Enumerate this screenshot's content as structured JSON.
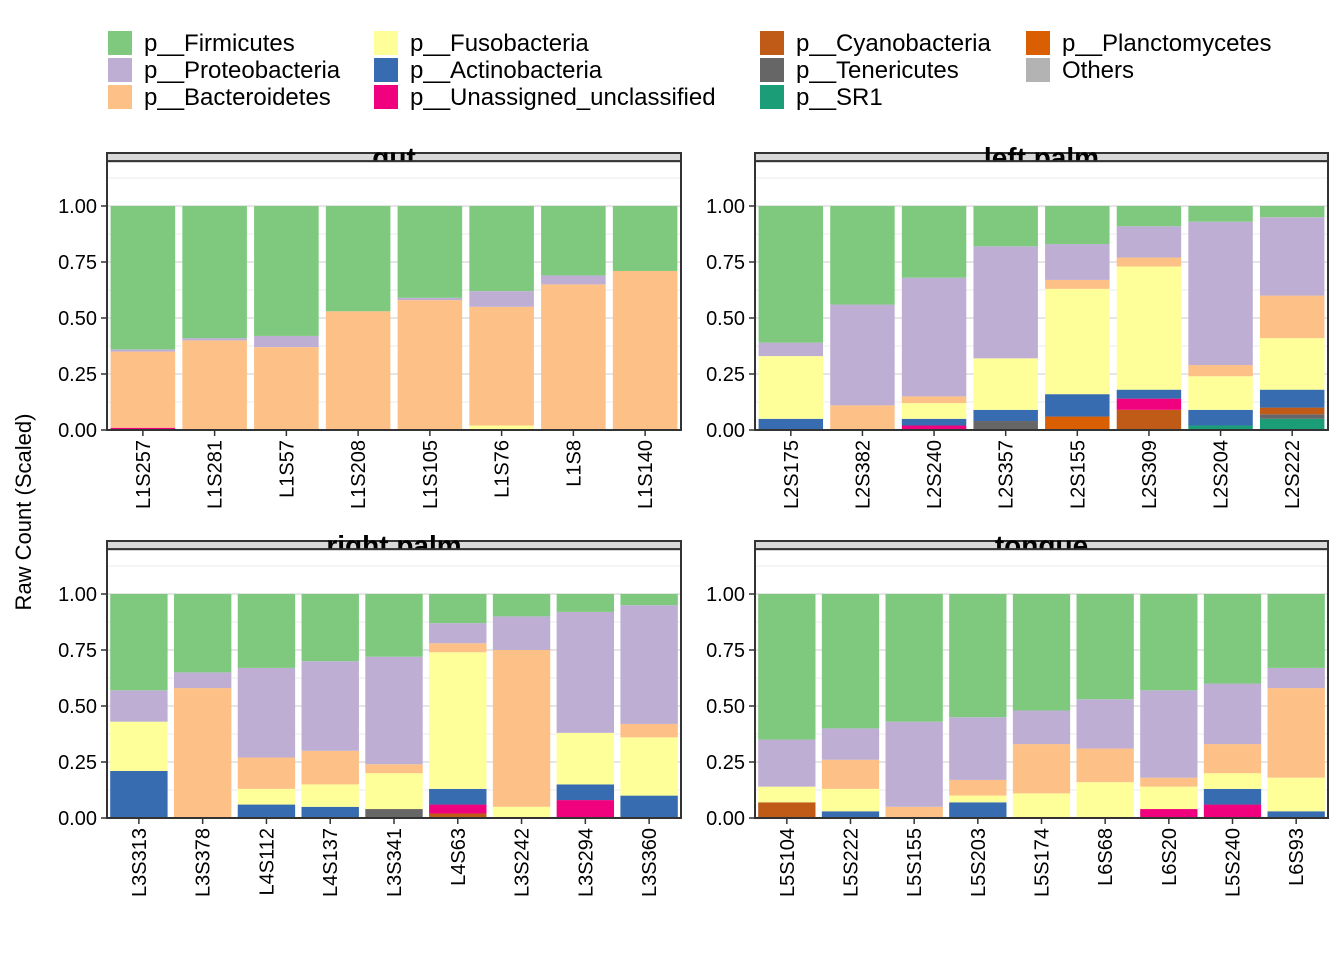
{
  "chart_data": {
    "type": "bar",
    "stacked": true,
    "ylabel": "Raw Count (Scaled)",
    "xlabel": "",
    "ylim": [
      0,
      1.2
    ],
    "yticks": [
      "0.00",
      "0.25",
      "0.50",
      "0.75",
      "1.00"
    ],
    "grid": true,
    "legend_position": "top",
    "series": [
      {
        "name": "p__Firmicutes",
        "color": "#7FC97F"
      },
      {
        "name": "p__Proteobacteria",
        "color": "#BEAED4"
      },
      {
        "name": "p__Bacteroidetes",
        "color": "#FDC086"
      },
      {
        "name": "p__Fusobacteria",
        "color": "#FFFF99"
      },
      {
        "name": "p__Actinobacteria",
        "color": "#386CB0"
      },
      {
        "name": "p__Unassigned_unclassified",
        "color": "#F0027F"
      },
      {
        "name": "p__Cyanobacteria",
        "color": "#BF5B17"
      },
      {
        "name": "p__Tenericutes",
        "color": "#666666"
      },
      {
        "name": "p__SR1",
        "color": "#1B9E77"
      },
      {
        "name": "p__Planctomycetes",
        "color": "#D95F02"
      },
      {
        "name": "Others",
        "color": "#B3B3B3"
      }
    ],
    "stack_order_bottom_to_top": [
      "Others",
      "p__Planctomycetes",
      "p__SR1",
      "p__Tenericutes",
      "p__Cyanobacteria",
      "p__Unassigned_unclassified",
      "p__Actinobacteria",
      "p__Fusobacteria",
      "p__Bacteroidetes",
      "p__Proteobacteria",
      "p__Firmicutes"
    ],
    "panels": [
      {
        "title": "gut",
        "samples": [
          "L1S257",
          "L1S281",
          "L1S57",
          "L1S208",
          "L1S105",
          "L1S76",
          "L1S8",
          "L1S140"
        ],
        "values": {
          "Others": [
            0,
            0,
            0,
            0,
            0,
            0,
            0,
            0
          ],
          "p__Planctomycetes": [
            0,
            0,
            0,
            0,
            0,
            0,
            0,
            0
          ],
          "p__SR1": [
            0,
            0,
            0,
            0,
            0,
            0,
            0,
            0
          ],
          "p__Tenericutes": [
            0,
            0,
            0,
            0,
            0,
            0,
            0,
            0
          ],
          "p__Cyanobacteria": [
            0,
            0,
            0,
            0,
            0,
            0,
            0,
            0
          ],
          "p__Unassigned_unclassified": [
            0.01,
            0,
            0,
            0,
            0,
            0,
            0,
            0
          ],
          "p__Actinobacteria": [
            0,
            0,
            0,
            0,
            0,
            0,
            0,
            0
          ],
          "p__Fusobacteria": [
            0,
            0,
            0,
            0,
            0,
            0.02,
            0,
            0
          ],
          "p__Bacteroidetes": [
            0.34,
            0.4,
            0.37,
            0.53,
            0.58,
            0.53,
            0.65,
            0.71
          ],
          "p__Proteobacteria": [
            0.01,
            0.01,
            0.05,
            0,
            0.01,
            0.07,
            0.04,
            0
          ],
          "p__Firmicutes": [
            0.64,
            0.59,
            0.58,
            0.47,
            0.41,
            0.38,
            0.31,
            0.29
          ]
        }
      },
      {
        "title": "left palm",
        "samples": [
          "L2S175",
          "L2S382",
          "L2S240",
          "L2S357",
          "L2S155",
          "L2S309",
          "L2S204",
          "L2S222"
        ],
        "values": {
          "Others": [
            0,
            0,
            0,
            0,
            0,
            0,
            0,
            0
          ],
          "p__Planctomycetes": [
            0,
            0,
            0,
            0,
            0.06,
            0,
            0,
            0
          ],
          "p__SR1": [
            0,
            0,
            0,
            0,
            0,
            0,
            0.02,
            0.05
          ],
          "p__Tenericutes": [
            0,
            0,
            0,
            0.04,
            0,
            0,
            0,
            0.02
          ],
          "p__Cyanobacteria": [
            0,
            0,
            0,
            0,
            0,
            0.09,
            0,
            0.03
          ],
          "p__Unassigned_unclassified": [
            0,
            0,
            0.02,
            0,
            0,
            0.05,
            0,
            0
          ],
          "p__Actinobacteria": [
            0.05,
            0,
            0.03,
            0.05,
            0.1,
            0.04,
            0.07,
            0.08
          ],
          "p__Fusobacteria": [
            0.28,
            0,
            0.07,
            0.23,
            0.47,
            0.55,
            0.15,
            0.23
          ],
          "p__Bacteroidetes": [
            0,
            0.11,
            0.03,
            0,
            0.04,
            0.04,
            0.05,
            0.19
          ],
          "p__Proteobacteria": [
            0.06,
            0.45,
            0.53,
            0.5,
            0.16,
            0.14,
            0.64,
            0.35
          ],
          "p__Firmicutes": [
            0.61,
            0.44,
            0.32,
            0.18,
            0.17,
            0.09,
            0.07,
            0.05
          ]
        }
      },
      {
        "title": "right palm",
        "samples": [
          "L3S313",
          "L3S378",
          "L4S112",
          "L4S137",
          "L3S341",
          "L4S63",
          "L3S242",
          "L3S294",
          "L3S360"
        ],
        "values": {
          "Others": [
            0,
            0,
            0,
            0,
            0,
            0,
            0,
            0,
            0
          ],
          "p__Planctomycetes": [
            0,
            0,
            0,
            0,
            0,
            0,
            0,
            0,
            0
          ],
          "p__SR1": [
            0,
            0,
            0,
            0,
            0,
            0,
            0,
            0,
            0
          ],
          "p__Tenericutes": [
            0,
            0,
            0,
            0,
            0.04,
            0,
            0,
            0,
            0
          ],
          "p__Cyanobacteria": [
            0,
            0,
            0,
            0,
            0,
            0.02,
            0,
            0,
            0
          ],
          "p__Unassigned_unclassified": [
            0,
            0,
            0,
            0,
            0,
            0.04,
            0,
            0.08,
            0
          ],
          "p__Actinobacteria": [
            0.21,
            0,
            0.06,
            0.05,
            0,
            0.07,
            0,
            0.07,
            0.1
          ],
          "p__Fusobacteria": [
            0.22,
            0,
            0.07,
            0.1,
            0.16,
            0.61,
            0.05,
            0.23,
            0.26
          ],
          "p__Bacteroidetes": [
            0,
            0.58,
            0.14,
            0.15,
            0.04,
            0.04,
            0.7,
            0,
            0.06
          ],
          "p__Proteobacteria": [
            0.14,
            0.07,
            0.4,
            0.4,
            0.48,
            0.09,
            0.15,
            0.54,
            0.53
          ],
          "p__Firmicutes": [
            0.43,
            0.35,
            0.33,
            0.3,
            0.28,
            0.13,
            0.1,
            0.08,
            0.05
          ]
        }
      },
      {
        "title": "tongue",
        "samples": [
          "L5S104",
          "L5S222",
          "L5S155",
          "L5S203",
          "L5S174",
          "L6S68",
          "L6S20",
          "L5S240",
          "L6S93"
        ],
        "values": {
          "Others": [
            0,
            0,
            0,
            0,
            0,
            0,
            0,
            0,
            0
          ],
          "p__Planctomycetes": [
            0,
            0,
            0,
            0,
            0,
            0,
            0,
            0,
            0
          ],
          "p__SR1": [
            0,
            0,
            0,
            0,
            0,
            0,
            0,
            0,
            0
          ],
          "p__Tenericutes": [
            0,
            0,
            0,
            0,
            0,
            0,
            0,
            0,
            0
          ],
          "p__Cyanobacteria": [
            0.07,
            0,
            0,
            0,
            0,
            0,
            0,
            0,
            0
          ],
          "p__Unassigned_unclassified": [
            0,
            0,
            0,
            0,
            0,
            0,
            0.04,
            0.06,
            0
          ],
          "p__Actinobacteria": [
            0,
            0.03,
            0,
            0.07,
            0,
            0,
            0,
            0.07,
            0.03
          ],
          "p__Fusobacteria": [
            0.07,
            0.1,
            0,
            0.03,
            0.11,
            0.16,
            0.1,
            0.07,
            0.15
          ],
          "p__Bacteroidetes": [
            0,
            0.13,
            0.05,
            0.07,
            0.22,
            0.15,
            0.04,
            0.13,
            0.4
          ],
          "p__Proteobacteria": [
            0.21,
            0.14,
            0.38,
            0.28,
            0.15,
            0.22,
            0.39,
            0.27,
            0.09
          ],
          "p__Firmicutes": [
            0.65,
            0.6,
            0.57,
            0.55,
            0.52,
            0.47,
            0.43,
            0.4,
            0.33
          ]
        }
      }
    ]
  }
}
